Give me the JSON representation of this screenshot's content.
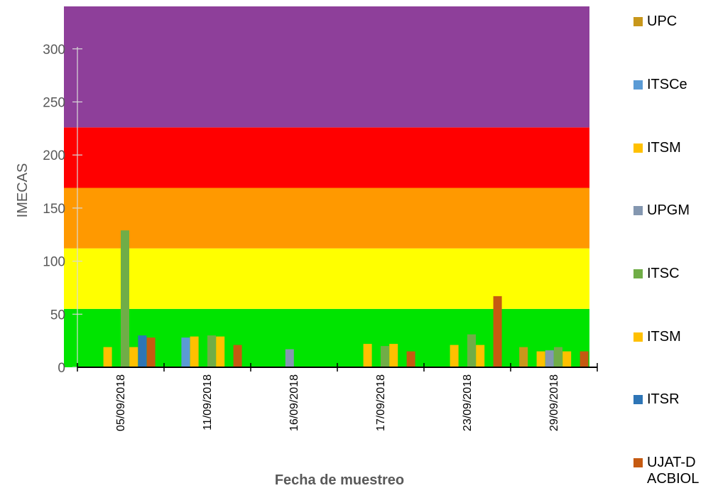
{
  "chart_data": {
    "type": "bar",
    "title": "",
    "xlabel": "Fecha de muestreo",
    "ylabel": "IMECAS",
    "ylim": [
      0,
      340
    ],
    "yticks": [
      0,
      50,
      100,
      150,
      200,
      250,
      300
    ],
    "grid": false,
    "legend_position": "right",
    "categories": [
      "05/09/2018",
      "11/09/2018",
      "16/09/2018",
      "17/09/2018",
      "23/09/2018",
      "29/09/2018"
    ],
    "bands": [
      {
        "from": 0,
        "to": 55,
        "color": "#00e400"
      },
      {
        "from": 55,
        "to": 112,
        "color": "#ffff00"
      },
      {
        "from": 112,
        "to": 169,
        "color": "#ff9900"
      },
      {
        "from": 169,
        "to": 226,
        "color": "#ff0000"
      },
      {
        "from": 226,
        "to": 340,
        "color": "#8e3f9a"
      }
    ],
    "series": [
      {
        "name": "UPC",
        "color": "#c8971b",
        "values": [
          null,
          null,
          null,
          null,
          null,
          19
        ]
      },
      {
        "name": "ITSCe",
        "color": "#5b9bd5",
        "values": [
          null,
          28,
          null,
          0,
          null,
          null
        ]
      },
      {
        "name": "ITSM",
        "color": "#ffc000",
        "values": [
          19,
          29,
          null,
          22,
          21,
          15
        ]
      },
      {
        "name": "UPGM",
        "color": "#8497b0",
        "values": [
          null,
          null,
          17,
          null,
          null,
          16
        ]
      },
      {
        "name": "ITSC",
        "color": "#70ad47",
        "values": [
          129,
          30,
          null,
          20,
          31,
          19
        ]
      },
      {
        "name": "ITSM",
        "color": "#ffc000",
        "values": [
          19,
          29,
          null,
          22,
          21,
          15
        ]
      },
      {
        "name": "ITSR",
        "color": "#2e75b6",
        "values": [
          30,
          null,
          null,
          null,
          null,
          null
        ]
      },
      {
        "name": "UJAT-DACBIOL",
        "color": "#c55a11",
        "values": [
          28,
          21,
          null,
          15,
          67,
          15
        ]
      }
    ]
  }
}
